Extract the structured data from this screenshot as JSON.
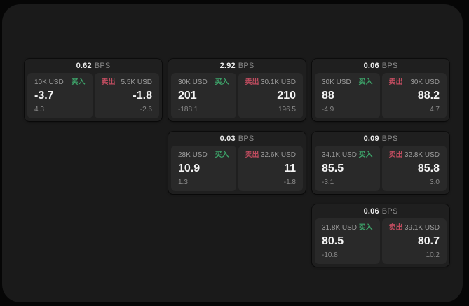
{
  "labels": {
    "bps_suffix": "BPS",
    "buy": "买入",
    "sell": "卖出"
  },
  "colors": {
    "buy": "#3ea66b",
    "sell": "#bf4c5f",
    "panel_bg": "#1a1a1a",
    "card_bg": "#1f1f1f",
    "cell_bg": "#292929"
  },
  "cards": [
    {
      "row": 1,
      "col": 1,
      "bps": "0.62",
      "buy": {
        "amount": "10K USD",
        "value": "-3.7",
        "delta": "4.3"
      },
      "sell": {
        "amount": "5.5K USD",
        "value": "-1.8",
        "delta": "-2.6"
      }
    },
    {
      "row": 1,
      "col": 2,
      "bps": "2.92",
      "buy": {
        "amount": "30K USD",
        "value": "201",
        "delta": "-188.1"
      },
      "sell": {
        "amount": "30.1K USD",
        "value": "210",
        "delta": "196.5"
      }
    },
    {
      "row": 1,
      "col": 3,
      "bps": "0.06",
      "buy": {
        "amount": "30K USD",
        "value": "88",
        "delta": "-4.9"
      },
      "sell": {
        "amount": "30K USD",
        "value": "88.2",
        "delta": "4.7"
      }
    },
    {
      "row": 2,
      "col": 2,
      "bps": "0.03",
      "buy": {
        "amount": "28K USD",
        "value": "10.9",
        "delta": "1.3"
      },
      "sell": {
        "amount": "32.6K USD",
        "value": "11",
        "delta": "-1.8"
      }
    },
    {
      "row": 2,
      "col": 3,
      "bps": "0.09",
      "buy": {
        "amount": "34.1K USD",
        "value": "85.5",
        "delta": "-3.1"
      },
      "sell": {
        "amount": "32.8K USD",
        "value": "85.8",
        "delta": "3.0"
      }
    },
    {
      "row": 3,
      "col": 3,
      "bps": "0.06",
      "buy": {
        "amount": "31.8K USD",
        "value": "80.5",
        "delta": "-10.8"
      },
      "sell": {
        "amount": "39.1K USD",
        "value": "80.7",
        "delta": "10.2"
      }
    }
  ]
}
